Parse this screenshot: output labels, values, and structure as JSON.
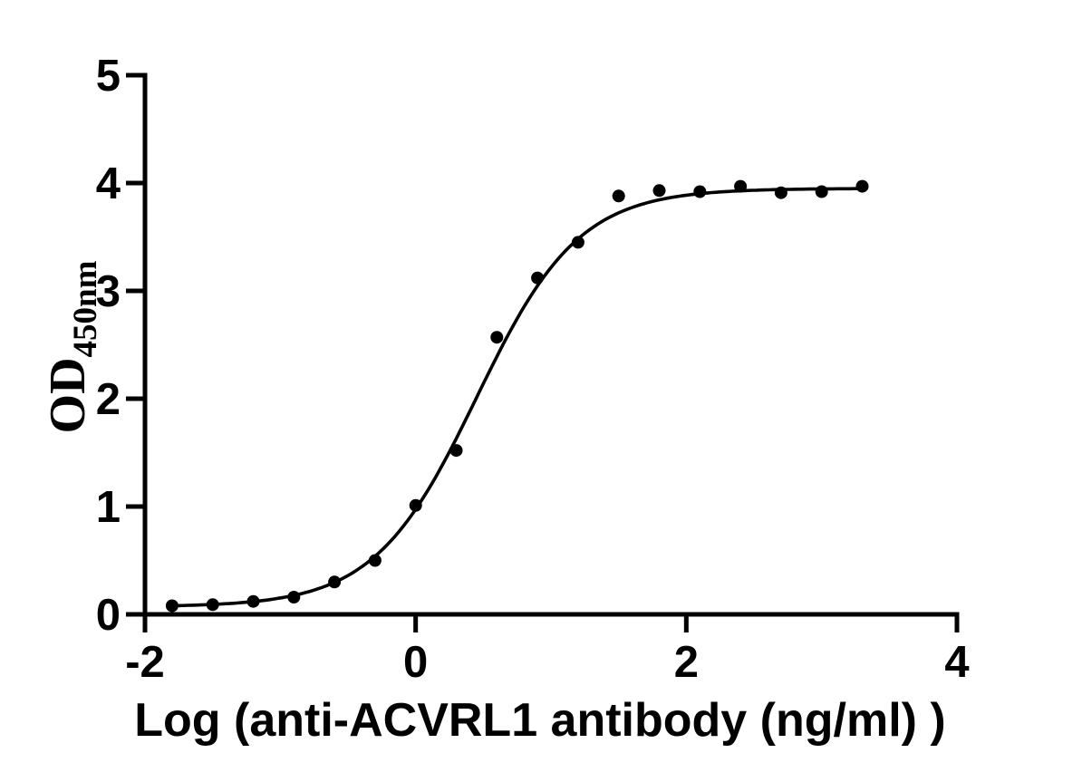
{
  "chart_data": {
    "type": "scatter",
    "title": "",
    "xlabel": "Log (anti-ACVRL1 antibody (ng/ml) )",
    "ylabel_base": "OD",
    "ylabel_sub": "450nm",
    "xlim": [
      -2,
      4
    ],
    "ylim": [
      0,
      5
    ],
    "x_ticks": [
      -2,
      0,
      2,
      4
    ],
    "y_ticks": [
      0,
      1,
      2,
      3,
      4,
      5
    ],
    "grid": false,
    "legend_position": "none",
    "marker_color": "#000000",
    "line_color": "#000000",
    "background_color": "#ffffff",
    "points": {
      "x": [
        -1.8,
        -1.5,
        -1.2,
        -0.9,
        -0.6,
        -0.3,
        0.0,
        0.3,
        0.6,
        0.9,
        1.2,
        1.5,
        1.8,
        2.1,
        2.4,
        2.7,
        3.0,
        3.3
      ],
      "y": [
        0.08,
        0.09,
        0.12,
        0.16,
        0.3,
        0.5,
        1.01,
        1.52,
        2.57,
        3.12,
        3.45,
        3.88,
        3.93,
        3.92,
        3.97,
        3.91,
        3.92,
        3.97
      ]
    },
    "fit_curve": {
      "model": "4PL-sigmoid",
      "bottom": 0.07,
      "top": 3.95,
      "logEC50": 0.45,
      "hill": 1.15,
      "x_range": [
        -1.8,
        3.3
      ]
    }
  }
}
